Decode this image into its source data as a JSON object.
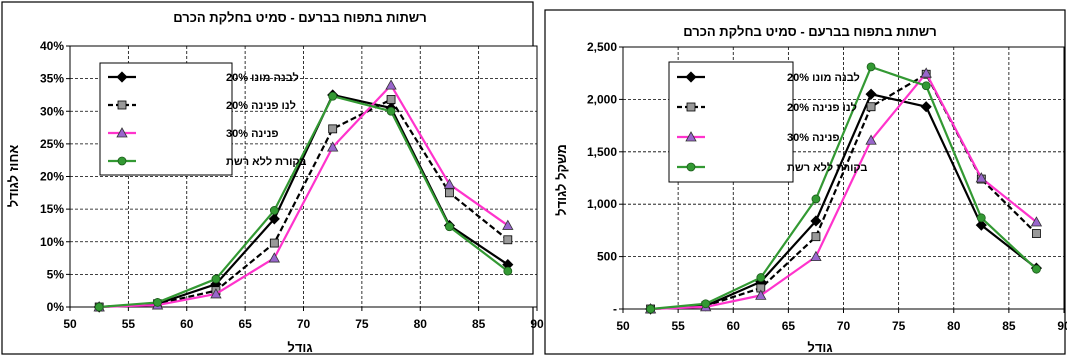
{
  "chart_data": [
    {
      "type": "line",
      "title": "רשתות בתפוח בברעם - סמיט בחלקת הכרם",
      "xlabel": "גודל",
      "ylabel": "אחוז לגודל",
      "x": [
        52.5,
        57.5,
        62.5,
        67.5,
        72.5,
        77.5,
        82.5,
        87.5
      ],
      "xlim": [
        50,
        90
      ],
      "xticks": [
        50,
        55,
        60,
        65,
        70,
        75,
        80,
        85,
        90
      ],
      "xtick_labels": [
        "50",
        "55",
        "60",
        "65",
        "70",
        "75",
        "80",
        "85",
        "90"
      ],
      "ylim": [
        0,
        40
      ],
      "yticks": [
        0,
        5,
        10,
        15,
        20,
        25,
        30,
        35,
        40
      ],
      "ytick_labels": [
        "0%",
        "5%",
        "10%",
        "15%",
        "20%",
        "25%",
        "30%",
        "35%",
        "40%"
      ],
      "grid": true,
      "legend_position": "top-left",
      "series": [
        {
          "name": "לבנה מונו 20%",
          "values": [
            0,
            0.5,
            3.5,
            13.5,
            32.5,
            30.5,
            12.5,
            6.5
          ],
          "color": "#000000",
          "marker": "diamond",
          "dash": "solid"
        },
        {
          "name": "לנו פנינה 20%",
          "values": [
            0,
            0.5,
            2.5,
            9.8,
            27.3,
            31.8,
            17.5,
            10.3
          ],
          "color": "#000000",
          "marker": "square",
          "dash": "dashed"
        },
        {
          "name": "פנינה 30%",
          "values": [
            0,
            0.3,
            2.0,
            7.5,
            24.5,
            34.0,
            18.8,
            12.5
          ],
          "color": "#ff33cc",
          "marker": "triangle",
          "dash": "solid"
        },
        {
          "name": "בקורת ללא רשת",
          "values": [
            0,
            0.7,
            4.3,
            14.8,
            32.3,
            30.0,
            12.3,
            5.5
          ],
          "color": "#339933",
          "marker": "circle",
          "dash": "solid"
        }
      ]
    },
    {
      "type": "line",
      "title": "רשתות בתפוח בברעם - סמיט בחלקת הכרם",
      "xlabel": "גודל",
      "ylabel": "משקל לגודל",
      "x": [
        52.5,
        57.5,
        62.5,
        67.5,
        72.5,
        77.5,
        82.5,
        87.5
      ],
      "xlim": [
        50,
        90
      ],
      "xticks": [
        50,
        55,
        60,
        65,
        70,
        75,
        80,
        85,
        90
      ],
      "xtick_labels": [
        "50",
        "55",
        "60",
        "65",
        "70",
        "75",
        "80",
        "85",
        "90"
      ],
      "ylim": [
        0,
        2500
      ],
      "yticks": [
        0,
        500,
        1000,
        1500,
        2000,
        2500
      ],
      "ytick_labels": [
        "-",
        "500",
        "1,000",
        "1,500",
        "2,000",
        "2,500"
      ],
      "grid": true,
      "legend_position": "top-left",
      "series": [
        {
          "name": "לבנה מונו 20%",
          "values": [
            0,
            30,
            260,
            840,
            2050,
            1930,
            800,
            390
          ],
          "color": "#000000",
          "marker": "diamond",
          "dash": "solid"
        },
        {
          "name": "לנו פנינה 20%",
          "values": [
            0,
            30,
            200,
            690,
            1930,
            2240,
            1240,
            720
          ],
          "color": "#000000",
          "marker": "square",
          "dash": "dashed"
        },
        {
          "name": "פנינה 30%",
          "values": [
            0,
            20,
            130,
            500,
            1610,
            2250,
            1250,
            830
          ],
          "color": "#ff33cc",
          "marker": "triangle",
          "dash": "solid"
        },
        {
          "name": "בקורת ללא רשת",
          "values": [
            0,
            50,
            300,
            1050,
            2310,
            2130,
            870,
            380
          ],
          "color": "#339933",
          "marker": "circle",
          "dash": "solid"
        }
      ]
    }
  ]
}
